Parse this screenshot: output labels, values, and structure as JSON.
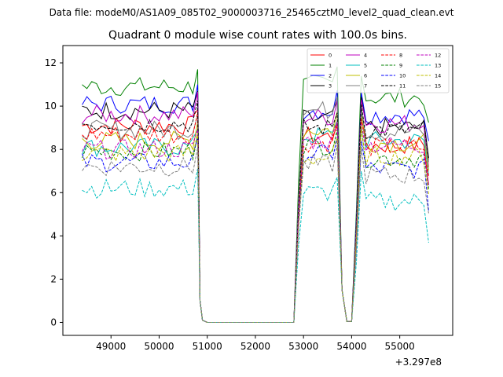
{
  "suptitle": "Data file: modeM0/AS1A09_085T02_9000003716_25465cztM0_level2_quad_clean.evt",
  "chart_data": {
    "type": "line",
    "title": "Quadrant 0 module wise count rates with 100.0s bins.",
    "xlabel": "",
    "ylabel": "",
    "x_offset_label": "+3.297e8",
    "xlim": [
      48000,
      56100
    ],
    "ylim": [
      -0.6,
      12.8
    ],
    "xticks": [
      49000,
      50000,
      51000,
      52000,
      53000,
      54000,
      55000
    ],
    "yticks": [
      0,
      2,
      4,
      6,
      8,
      10,
      12
    ],
    "grid": false,
    "legend": {
      "placement": "top-right",
      "ncol": 4
    },
    "series": [
      {
        "name": "0",
        "color": "#ff0000",
        "dash": false,
        "level": [
          9.1,
          8.6,
          8.2
        ]
      },
      {
        "name": "1",
        "color": "#008000",
        "dash": false,
        "level": [
          10.9,
          11.0,
          10.4
        ]
      },
      {
        "name": "2",
        "color": "#0000ff",
        "dash": false,
        "level": [
          10.1,
          9.8,
          9.6
        ]
      },
      {
        "name": "3",
        "color": "#000000",
        "dash": false,
        "level": [
          9.8,
          9.4,
          9.0
        ]
      },
      {
        "name": "4",
        "color": "#bf00bf",
        "dash": false,
        "level": [
          9.6,
          9.5,
          9.2
        ]
      },
      {
        "name": "5",
        "color": "#00bfbf",
        "dash": false,
        "level": [
          8.1,
          8.6,
          8.4
        ]
      },
      {
        "name": "6",
        "color": "#bfbf00",
        "dash": false,
        "level": [
          8.4,
          8.9,
          8.3
        ]
      },
      {
        "name": "7",
        "color": "#808080",
        "dash": false,
        "level": [
          8.9,
          9.8,
          8.8
        ]
      },
      {
        "name": "8",
        "color": "#ff0000",
        "dash": true,
        "level": [
          8.7,
          8.3,
          8.1
        ]
      },
      {
        "name": "9",
        "color": "#008000",
        "dash": true,
        "level": [
          7.9,
          8.2,
          7.6
        ]
      },
      {
        "name": "10",
        "color": "#0000ff",
        "dash": true,
        "level": [
          7.4,
          7.8,
          7.1
        ]
      },
      {
        "name": "11",
        "color": "#000000",
        "dash": true,
        "level": [
          9.2,
          9.0,
          8.9
        ]
      },
      {
        "name": "12",
        "color": "#bf00bf",
        "dash": true,
        "level": [
          8.0,
          8.4,
          8.2
        ]
      },
      {
        "name": "13",
        "color": "#00bfbf",
        "dash": true,
        "level": [
          6.2,
          6.0,
          5.6
        ]
      },
      {
        "name": "14",
        "color": "#bfbf00",
        "dash": true,
        "level": [
          7.8,
          7.6,
          7.7
        ]
      },
      {
        "name": "15",
        "color": "#808080",
        "dash": true,
        "level": [
          7.2,
          7.3,
          6.8
        ]
      }
    ],
    "segments": [
      {
        "start": 48400,
        "end": 50700,
        "level_index": 0
      },
      {
        "gap_start": 50900,
        "gap_end": 52800
      },
      {
        "start": 53000,
        "end": 53700,
        "level_index": 1
      },
      {
        "dip_start": 53800,
        "dip_end": 54100
      },
      {
        "start": 54200,
        "end": 55500,
        "level_index": 2
      }
    ]
  }
}
